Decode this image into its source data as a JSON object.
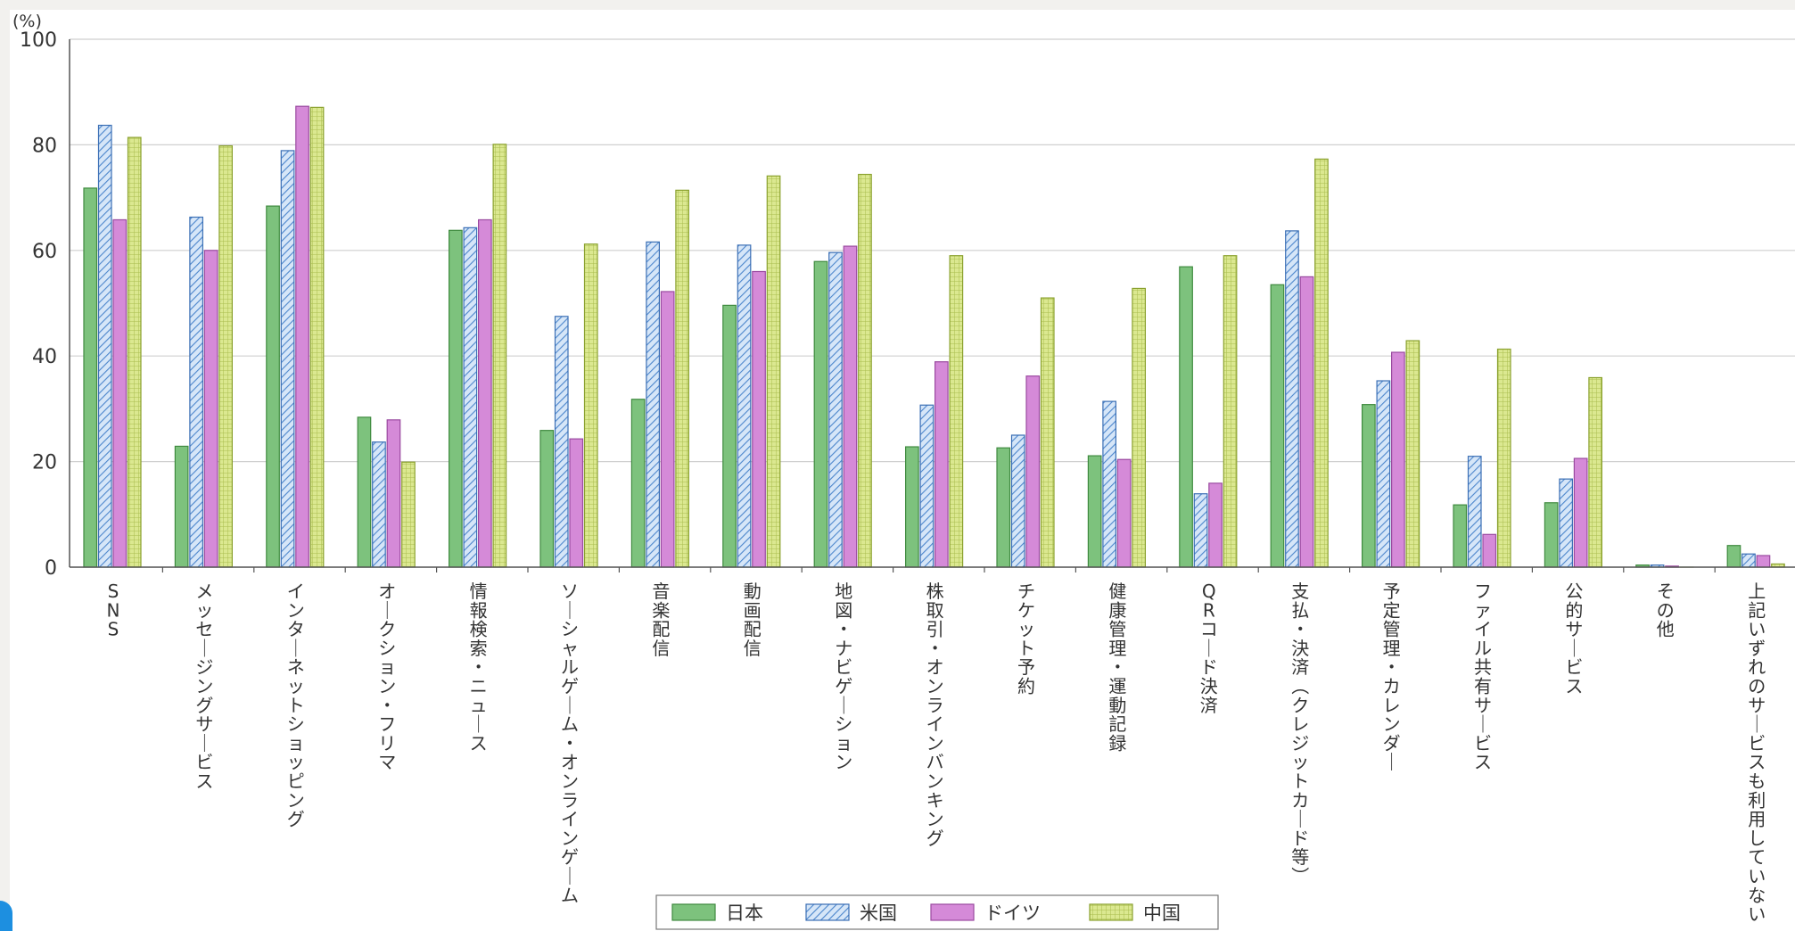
{
  "chart_data": {
    "type": "bar",
    "unit_label": "(%)",
    "ylim": [
      0,
      100
    ],
    "yticks": [
      0,
      20,
      40,
      60,
      80,
      100
    ],
    "grid": true,
    "legend_position": "bottom",
    "categories": [
      "SNS",
      "メッセージングサービス",
      "インターネットショッピング",
      "オークション・フリマ",
      "情報検索・ニュース",
      "ソーシャルゲーム・オンラインゲーム",
      "音楽配信",
      "動画配信",
      "地図・ナビゲーション",
      "株取引・オンラインバンキング",
      "チケット予約",
      "健康管理・運動記録",
      "QRコード決済",
      "支払・決済（クレジットカード等）",
      "予定管理・カレンダー",
      "ファイル共有サービス",
      "公的サービス",
      "その他",
      "上記いずれのサービスも利用していない"
    ],
    "series": [
      {
        "name": "日本",
        "color": "#7dc27d",
        "pattern": "solid",
        "values": [
          71.8,
          22.9,
          68.4,
          28.4,
          63.8,
          25.9,
          31.8,
          49.6,
          57.9,
          22.8,
          22.6,
          21.1,
          56.9,
          53.5,
          30.8,
          11.8,
          12.2,
          0.4,
          4.1
        ]
      },
      {
        "name": "米国",
        "color": "#a9c8ef",
        "pattern": "hatch",
        "values": [
          83.7,
          66.3,
          78.9,
          23.7,
          64.3,
          47.5,
          61.6,
          61.0,
          59.6,
          30.7,
          25.0,
          31.4,
          13.9,
          63.7,
          35.3,
          21.0,
          16.7,
          0.4,
          2.5
        ]
      },
      {
        "name": "ドイツ",
        "color": "#d58ad8",
        "pattern": "solid",
        "values": [
          65.8,
          60.0,
          87.3,
          27.9,
          65.8,
          24.3,
          52.2,
          56.0,
          60.8,
          38.9,
          36.2,
          20.4,
          15.9,
          55.0,
          40.7,
          6.2,
          20.6,
          0.2,
          2.2
        ]
      },
      {
        "name": "中国",
        "color": "#dbe890",
        "pattern": "grid",
        "values": [
          81.4,
          79.8,
          87.1,
          19.9,
          80.1,
          61.2,
          71.4,
          74.1,
          74.4,
          59.0,
          51.0,
          52.8,
          59.0,
          77.3,
          42.9,
          41.3,
          35.9,
          0.0,
          0.6
        ]
      }
    ]
  }
}
